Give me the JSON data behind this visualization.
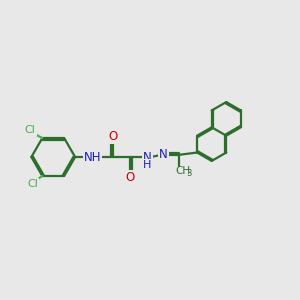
{
  "background_color": "#e8e8e8",
  "bond_color": "#2d6e2d",
  "atom_colors": {
    "Cl": "#4caf50",
    "N": "#1a1acc",
    "O": "#cc0000",
    "H": "#888888",
    "C": "#2d6e2d"
  },
  "line_width": 1.6,
  "figsize": [
    3.0,
    3.0
  ],
  "dpi": 100
}
